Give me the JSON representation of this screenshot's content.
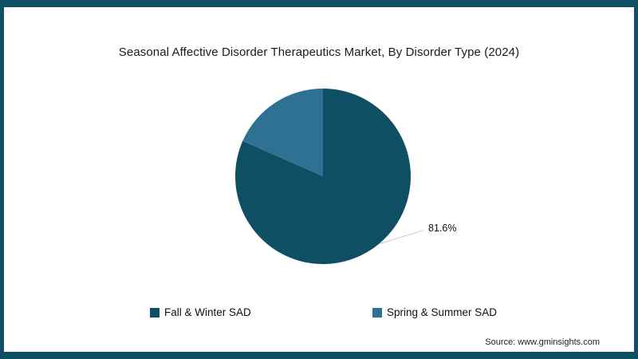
{
  "frame": {
    "border_color": "#0e4f63",
    "background": "#ffffff"
  },
  "chart_data": {
    "type": "pie",
    "title": "Seasonal Affective Disorder Therapeutics Market, By Disorder Type (2024)",
    "slices": [
      {
        "label": "Fall & Winter SAD",
        "value": 81.6,
        "color": "#0e4f63"
      },
      {
        "label": "Spring & Summer SAD",
        "value": 18.4,
        "color": "#2f7193"
      }
    ],
    "start_angle_deg": 0,
    "direction": "clockwise",
    "data_label": "81.6%",
    "legend_position": "bottom",
    "leader_line_color": "#c9c9c9"
  },
  "source": "Source: www.gminsights.com"
}
